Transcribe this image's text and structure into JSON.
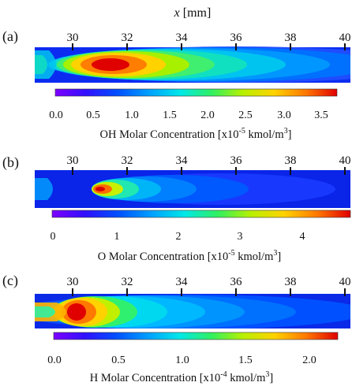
{
  "figure": {
    "x_axis_title_var": "x",
    "x_axis_title_unit": " [mm]",
    "x_ticks": [
      "30",
      "32",
      "34",
      "36",
      "38",
      "40"
    ]
  },
  "panels": [
    {
      "id": "a",
      "label": "(a)",
      "species": "OH",
      "colorbar_ticks": [
        "0.0",
        "0.5",
        "1.0",
        "1.5",
        "2.0",
        "2.5",
        "3.0",
        "3.5"
      ],
      "title_before": "OH Molar Concentration [x10",
      "title_exp": "-5",
      "title_mid": " kmol/m",
      "title_sup": "3",
      "title_after": "]"
    },
    {
      "id": "b",
      "label": "(b)",
      "species": "O",
      "colorbar_ticks": [
        "0",
        "1",
        "2",
        "3",
        "4"
      ],
      "title_before": "O Molar Concentration [x10",
      "title_exp": "-5",
      "title_mid": " kmol/m",
      "title_sup": "3",
      "title_after": "]"
    },
    {
      "id": "c",
      "label": "(c)",
      "species": "H",
      "colorbar_ticks": [
        "0.0",
        "0.5",
        "1.0",
        "1.5",
        "2.0"
      ],
      "title_before": "H Molar Concentration [x10",
      "title_exp": "-4",
      "title_mid": " kmol/m",
      "title_sup": "3",
      "title_after": "]"
    }
  ],
  "colormap": [
    "#7d00ff",
    "#3010ff",
    "#0050ff",
    "#00a0ff",
    "#00e8e8",
    "#30f060",
    "#b8f000",
    "#ffd200",
    "#ff7800",
    "#e00000"
  ]
}
